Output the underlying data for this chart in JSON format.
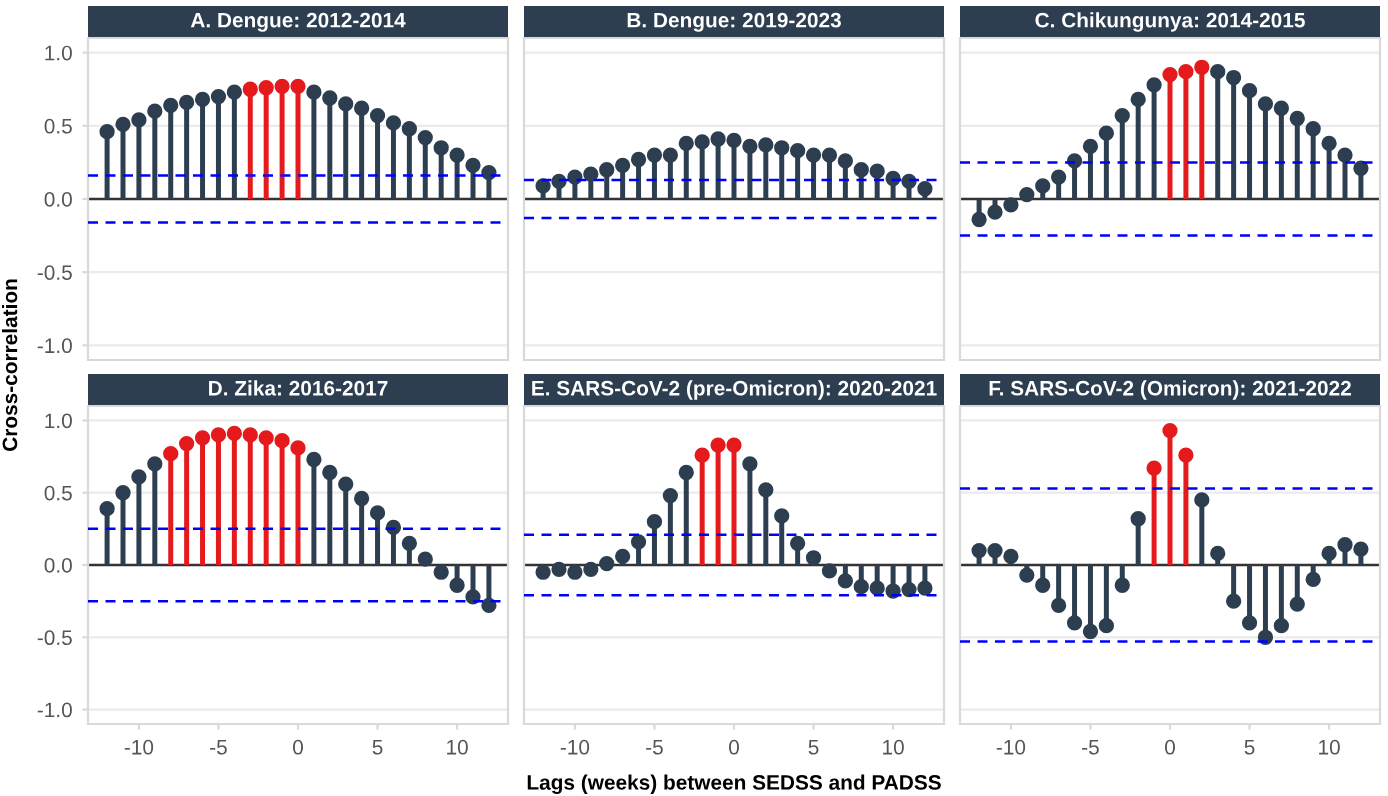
{
  "chart_data": [
    {
      "type": "lollipop",
      "title": "A. Dengue: 2012-2014",
      "ylabel": "Cross-correlation",
      "x": [
        -12,
        -11,
        -10,
        -9,
        -8,
        -7,
        -6,
        -5,
        -4,
        -3,
        -2,
        -1,
        0,
        1,
        2,
        3,
        4,
        5,
        6,
        7,
        8,
        9,
        10,
        11,
        12
      ],
      "values": [
        0.46,
        0.51,
        0.54,
        0.6,
        0.64,
        0.66,
        0.68,
        0.7,
        0.73,
        0.75,
        0.76,
        0.77,
        0.77,
        0.73,
        0.69,
        0.65,
        0.62,
        0.57,
        0.52,
        0.48,
        0.42,
        0.35,
        0.3,
        0.23,
        0.18
      ],
      "colors": [
        "#2c3e50",
        "#2c3e50",
        "#2c3e50",
        "#2c3e50",
        "#2c3e50",
        "#2c3e50",
        "#2c3e50",
        "#2c3e50",
        "#2c3e50",
        "#e41a1c",
        "#e41a1c",
        "#e41a1c",
        "#e41a1c",
        "#2c3e50",
        "#2c3e50",
        "#2c3e50",
        "#2c3e50",
        "#2c3e50",
        "#2c3e50",
        "#2c3e50",
        "#2c3e50",
        "#2c3e50",
        "#2c3e50",
        "#2c3e50",
        "#2c3e50"
      ],
      "ref_lines": [
        {
          "axis": "y",
          "value": 0.16,
          "color": "#0000ff",
          "line_style": "dashed"
        },
        {
          "axis": "y",
          "value": -0.16,
          "color": "#0000ff",
          "line_style": "dashed"
        }
      ],
      "xlim": [
        -13.2,
        13.2
      ],
      "ylim": [
        -1.1,
        1.1
      ],
      "yticks": [
        {
          "value": -1,
          "label": "-1.0"
        },
        {
          "value": -0.5,
          "label": "-0.5"
        },
        {
          "value": 0,
          "label": "0.0"
        },
        {
          "value": 0.5,
          "label": "0.5"
        },
        {
          "value": 1,
          "label": "1.0"
        }
      ],
      "grid": "y",
      "marker": "circle",
      "tick_labels": "y"
    },
    {
      "type": "lollipop",
      "title": "B. Dengue: 2019-2023",
      "x": [
        -12,
        -11,
        -10,
        -9,
        -8,
        -7,
        -6,
        -5,
        -4,
        -3,
        -2,
        -1,
        0,
        1,
        2,
        3,
        4,
        5,
        6,
        7,
        8,
        9,
        10,
        11,
        12
      ],
      "values": [
        0.09,
        0.12,
        0.15,
        0.17,
        0.2,
        0.23,
        0.27,
        0.3,
        0.3,
        0.38,
        0.39,
        0.41,
        0.4,
        0.36,
        0.37,
        0.35,
        0.33,
        0.3,
        0.3,
        0.26,
        0.2,
        0.19,
        0.14,
        0.12,
        0.07
      ],
      "colors": [
        "#2c3e50",
        "#2c3e50",
        "#2c3e50",
        "#2c3e50",
        "#2c3e50",
        "#2c3e50",
        "#2c3e50",
        "#2c3e50",
        "#2c3e50",
        "#2c3e50",
        "#2c3e50",
        "#2c3e50",
        "#2c3e50",
        "#2c3e50",
        "#2c3e50",
        "#2c3e50",
        "#2c3e50",
        "#2c3e50",
        "#2c3e50",
        "#2c3e50",
        "#2c3e50",
        "#2c3e50",
        "#2c3e50",
        "#2c3e50",
        "#2c3e50"
      ],
      "ref_lines": [
        {
          "axis": "y",
          "value": 0.13,
          "color": "#0000ff",
          "line_style": "dashed"
        },
        {
          "axis": "y",
          "value": -0.13,
          "color": "#0000ff",
          "line_style": "dashed"
        }
      ],
      "xlim": [
        -13.2,
        13.2
      ],
      "ylim": [
        -1.1,
        1.1
      ],
      "yticks": [
        {
          "value": -1,
          "label": null
        },
        {
          "value": -0.5,
          "label": null
        },
        {
          "value": 0,
          "label": null
        },
        {
          "value": 0.5,
          "label": null
        },
        {
          "value": 1,
          "label": null
        }
      ],
      "grid": "y",
      "marker": "circle",
      "tick_labels": false
    },
    {
      "type": "lollipop",
      "title": "C. Chikungunya: 2014-2015",
      "x": [
        -12,
        -11,
        -10,
        -9,
        -8,
        -7,
        -6,
        -5,
        -4,
        -3,
        -2,
        -1,
        0,
        1,
        2,
        3,
        4,
        5,
        6,
        7,
        8,
        9,
        10,
        11,
        12
      ],
      "values": [
        -0.14,
        -0.09,
        -0.04,
        0.03,
        0.09,
        0.15,
        0.26,
        0.36,
        0.45,
        0.57,
        0.68,
        0.78,
        0.85,
        0.87,
        0.9,
        0.87,
        0.83,
        0.74,
        0.65,
        0.62,
        0.55,
        0.48,
        0.38,
        0.3,
        0.21
      ],
      "colors": [
        "#2c3e50",
        "#2c3e50",
        "#2c3e50",
        "#2c3e50",
        "#2c3e50",
        "#2c3e50",
        "#2c3e50",
        "#2c3e50",
        "#2c3e50",
        "#2c3e50",
        "#2c3e50",
        "#2c3e50",
        "#e41a1c",
        "#e41a1c",
        "#e41a1c",
        "#2c3e50",
        "#2c3e50",
        "#2c3e50",
        "#2c3e50",
        "#2c3e50",
        "#2c3e50",
        "#2c3e50",
        "#2c3e50",
        "#2c3e50",
        "#2c3e50"
      ],
      "ref_lines": [
        {
          "axis": "y",
          "value": 0.25,
          "color": "#0000ff",
          "line_style": "dashed"
        },
        {
          "axis": "y",
          "value": -0.25,
          "color": "#0000ff",
          "line_style": "dashed"
        }
      ],
      "xlim": [
        -13.2,
        13.2
      ],
      "ylim": [
        -1.1,
        1.1
      ],
      "yticks": [
        {
          "value": -1,
          "label": null
        },
        {
          "value": -0.5,
          "label": null
        },
        {
          "value": 0,
          "label": null
        },
        {
          "value": 0.5,
          "label": null
        },
        {
          "value": 1,
          "label": null
        }
      ],
      "grid": "y",
      "marker": "circle",
      "tick_labels": false
    },
    {
      "type": "lollipop",
      "title": "D. Zika: 2016-2017",
      "x": [
        -12,
        -11,
        -10,
        -9,
        -8,
        -7,
        -6,
        -5,
        -4,
        -3,
        -2,
        -1,
        0,
        1,
        2,
        3,
        4,
        5,
        6,
        7,
        8,
        9,
        10,
        11,
        12
      ],
      "values": [
        0.39,
        0.5,
        0.61,
        0.7,
        0.77,
        0.84,
        0.88,
        0.9,
        0.91,
        0.9,
        0.88,
        0.86,
        0.81,
        0.73,
        0.64,
        0.56,
        0.46,
        0.36,
        0.26,
        0.15,
        0.04,
        -0.05,
        -0.14,
        -0.22,
        -0.28
      ],
      "colors": [
        "#2c3e50",
        "#2c3e50",
        "#2c3e50",
        "#2c3e50",
        "#e41a1c",
        "#e41a1c",
        "#e41a1c",
        "#e41a1c",
        "#e41a1c",
        "#e41a1c",
        "#e41a1c",
        "#e41a1c",
        "#e41a1c",
        "#2c3e50",
        "#2c3e50",
        "#2c3e50",
        "#2c3e50",
        "#2c3e50",
        "#2c3e50",
        "#2c3e50",
        "#2c3e50",
        "#2c3e50",
        "#2c3e50",
        "#2c3e50",
        "#2c3e50"
      ],
      "ref_lines": [
        {
          "axis": "y",
          "value": 0.25,
          "color": "#0000ff",
          "line_style": "dashed"
        },
        {
          "axis": "y",
          "value": -0.25,
          "color": "#0000ff",
          "line_style": "dashed"
        }
      ],
      "xlim": [
        -13.2,
        13.2
      ],
      "xticks": [
        -10,
        -5,
        0,
        5,
        10
      ],
      "ylim": [
        -1.1,
        1.1
      ],
      "yticks": [
        {
          "value": -1,
          "label": "-1.0"
        },
        {
          "value": -0.5,
          "label": "-0.5"
        },
        {
          "value": 0,
          "label": "0.0"
        },
        {
          "value": 0.5,
          "label": "0.5"
        },
        {
          "value": 1,
          "label": "1.0"
        }
      ],
      "grid": "y",
      "marker": "circle"
    },
    {
      "type": "lollipop",
      "title": "E. SARS-CoV-2 (pre-Omicron): 2020-2021",
      "xlabel": "Lags (weeks) between SEDSS and PADSS",
      "x": [
        -12,
        -11,
        -10,
        -9,
        -8,
        -7,
        -6,
        -5,
        -4,
        -3,
        -2,
        -1,
        0,
        1,
        2,
        3,
        4,
        5,
        6,
        7,
        8,
        9,
        10,
        11,
        12
      ],
      "values": [
        -0.05,
        -0.03,
        -0.05,
        -0.03,
        0.01,
        0.06,
        0.16,
        0.3,
        0.48,
        0.64,
        0.76,
        0.83,
        0.83,
        0.7,
        0.52,
        0.34,
        0.15,
        0.05,
        -0.04,
        -0.11,
        -0.15,
        -0.16,
        -0.18,
        -0.17,
        -0.16
      ],
      "colors": [
        "#2c3e50",
        "#2c3e50",
        "#2c3e50",
        "#2c3e50",
        "#2c3e50",
        "#2c3e50",
        "#2c3e50",
        "#2c3e50",
        "#2c3e50",
        "#2c3e50",
        "#e41a1c",
        "#e41a1c",
        "#e41a1c",
        "#2c3e50",
        "#2c3e50",
        "#2c3e50",
        "#2c3e50",
        "#2c3e50",
        "#2c3e50",
        "#2c3e50",
        "#2c3e50",
        "#2c3e50",
        "#2c3e50",
        "#2c3e50",
        "#2c3e50"
      ],
      "ref_lines": [
        {
          "axis": "y",
          "value": 0.21,
          "color": "#0000ff",
          "line_style": "dashed"
        },
        {
          "axis": "y",
          "value": -0.21,
          "color": "#0000ff",
          "line_style": "dashed"
        }
      ],
      "xlim": [
        -13.2,
        13.2
      ],
      "xticks": [
        -10,
        -5,
        0,
        5,
        10
      ],
      "ylim": [
        -1.1,
        1.1
      ],
      "yticks": [
        {
          "value": -1,
          "label": null
        },
        {
          "value": -0.5,
          "label": null
        },
        {
          "value": 0,
          "label": null
        },
        {
          "value": 0.5,
          "label": null
        },
        {
          "value": 1,
          "label": null
        }
      ],
      "grid": "y",
      "marker": "circle",
      "tick_labels": "x"
    },
    {
      "type": "lollipop",
      "title": "F. SARS-CoV-2 (Omicron): 2021-2022",
      "x": [
        -12,
        -11,
        -10,
        -9,
        -8,
        -7,
        -6,
        -5,
        -4,
        -3,
        -2,
        -1,
        0,
        1,
        2,
        3,
        4,
        5,
        6,
        7,
        8,
        9,
        10,
        11,
        12
      ],
      "values": [
        0.1,
        0.1,
        0.06,
        -0.07,
        -0.14,
        -0.28,
        -0.4,
        -0.46,
        -0.42,
        -0.14,
        0.32,
        0.67,
        0.93,
        0.76,
        0.45,
        0.08,
        -0.25,
        -0.4,
        -0.5,
        -0.42,
        -0.27,
        -0.1,
        0.08,
        0.14,
        0.11
      ],
      "colors": [
        "#2c3e50",
        "#2c3e50",
        "#2c3e50",
        "#2c3e50",
        "#2c3e50",
        "#2c3e50",
        "#2c3e50",
        "#2c3e50",
        "#2c3e50",
        "#2c3e50",
        "#2c3e50",
        "#e41a1c",
        "#e41a1c",
        "#e41a1c",
        "#2c3e50",
        "#2c3e50",
        "#2c3e50",
        "#2c3e50",
        "#2c3e50",
        "#2c3e50",
        "#2c3e50",
        "#2c3e50",
        "#2c3e50",
        "#2c3e50",
        "#2c3e50"
      ],
      "ref_lines": [
        {
          "axis": "y",
          "value": 0.53,
          "color": "#0000ff",
          "line_style": "dashed"
        },
        {
          "axis": "y",
          "value": -0.53,
          "color": "#0000ff",
          "line_style": "dashed"
        }
      ],
      "xlim": [
        -13.2,
        13.2
      ],
      "xticks": [
        -10,
        -5,
        0,
        5,
        10
      ],
      "ylim": [
        -1.1,
        1.1
      ],
      "yticks": [
        {
          "value": -1,
          "label": null
        },
        {
          "value": -0.5,
          "label": null
        },
        {
          "value": 0,
          "label": null
        },
        {
          "value": 0.5,
          "label": null
        },
        {
          "value": 1,
          "label": null
        }
      ],
      "grid": "y",
      "marker": "circle",
      "tick_labels": "x"
    }
  ]
}
